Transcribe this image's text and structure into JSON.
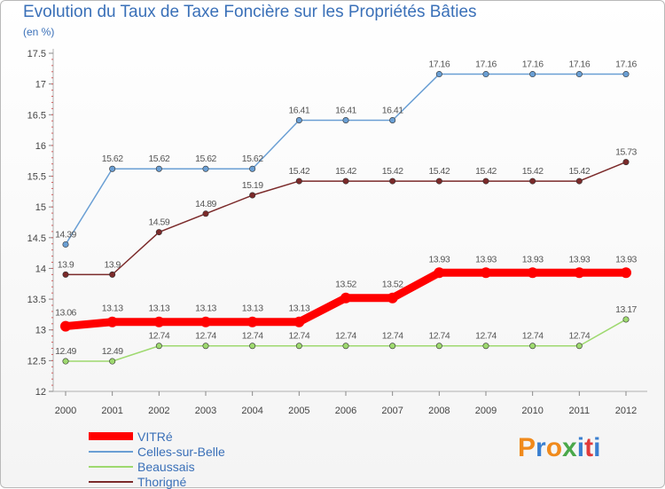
{
  "title": "Evolution du Taux de Taxe Foncière sur les Propriétés Bâties",
  "subtitle": "(en %)",
  "logo_text": "Proxiti",
  "chart_data": {
    "type": "line",
    "title": "Evolution du Taux de Taxe Foncière sur les Propriétés Bâties",
    "ylabel": "(en %)",
    "xlabel": "",
    "categories": [
      "2000",
      "2001",
      "2002",
      "2003",
      "2004",
      "2005",
      "2006",
      "2007",
      "2008",
      "2009",
      "2010",
      "2011",
      "2012"
    ],
    "ylim": [
      12,
      17.5
    ],
    "yticks": [
      "12",
      "12.5",
      "13",
      "13.5",
      "14",
      "14.5",
      "15",
      "15.5",
      "16",
      "16.5",
      "17",
      "17.5"
    ],
    "grid": false,
    "legend_position": "bottom-left",
    "series": [
      {
        "name": "VITRé",
        "color": "#ff0000",
        "values": [
          13.06,
          13.13,
          13.13,
          13.13,
          13.13,
          13.13,
          13.52,
          13.52,
          13.93,
          13.93,
          13.93,
          13.93,
          13.93
        ],
        "labels": [
          "13.06",
          "13.13",
          "13.13",
          "13.13",
          "13.13",
          "13.13",
          "13.52",
          "13.52",
          "13.93",
          "13.93",
          "13.93",
          "13.93",
          "13.93"
        ]
      },
      {
        "name": "Celles-sur-Belle",
        "color": "#6a9fd4",
        "values": [
          14.39,
          15.62,
          15.62,
          15.62,
          15.62,
          16.41,
          16.41,
          16.41,
          17.16,
          17.16,
          17.16,
          17.16,
          17.16
        ],
        "labels": [
          "14.39",
          "15.62",
          "15.62",
          "15.62",
          "15.62",
          "16.41",
          "16.41",
          "16.41",
          "17.16",
          "17.16",
          "17.16",
          "17.16",
          "17.16"
        ]
      },
      {
        "name": "Beaussais",
        "color": "#9ed96f",
        "values": [
          12.49,
          12.49,
          12.74,
          12.74,
          12.74,
          12.74,
          12.74,
          12.74,
          12.74,
          12.74,
          12.74,
          12.74,
          13.17
        ],
        "labels": [
          "12.49",
          "12.49",
          "12.74",
          "12.74",
          "12.74",
          "12.74",
          "12.74",
          "12.74",
          "12.74",
          "12.74",
          "12.74",
          "12.74",
          "13.17"
        ]
      },
      {
        "name": "Thorigné",
        "color": "#7b2a2a",
        "values": [
          13.9,
          13.9,
          14.59,
          14.89,
          15.19,
          15.42,
          15.42,
          15.42,
          15.42,
          15.42,
          15.42,
          15.42,
          15.73
        ],
        "labels": [
          "13.9",
          "13.9",
          "14.59",
          "14.89",
          "15.19",
          "15.42",
          "15.42",
          "15.42",
          "15.42",
          "15.42",
          "15.42",
          "15.42",
          "15.73"
        ]
      }
    ]
  }
}
